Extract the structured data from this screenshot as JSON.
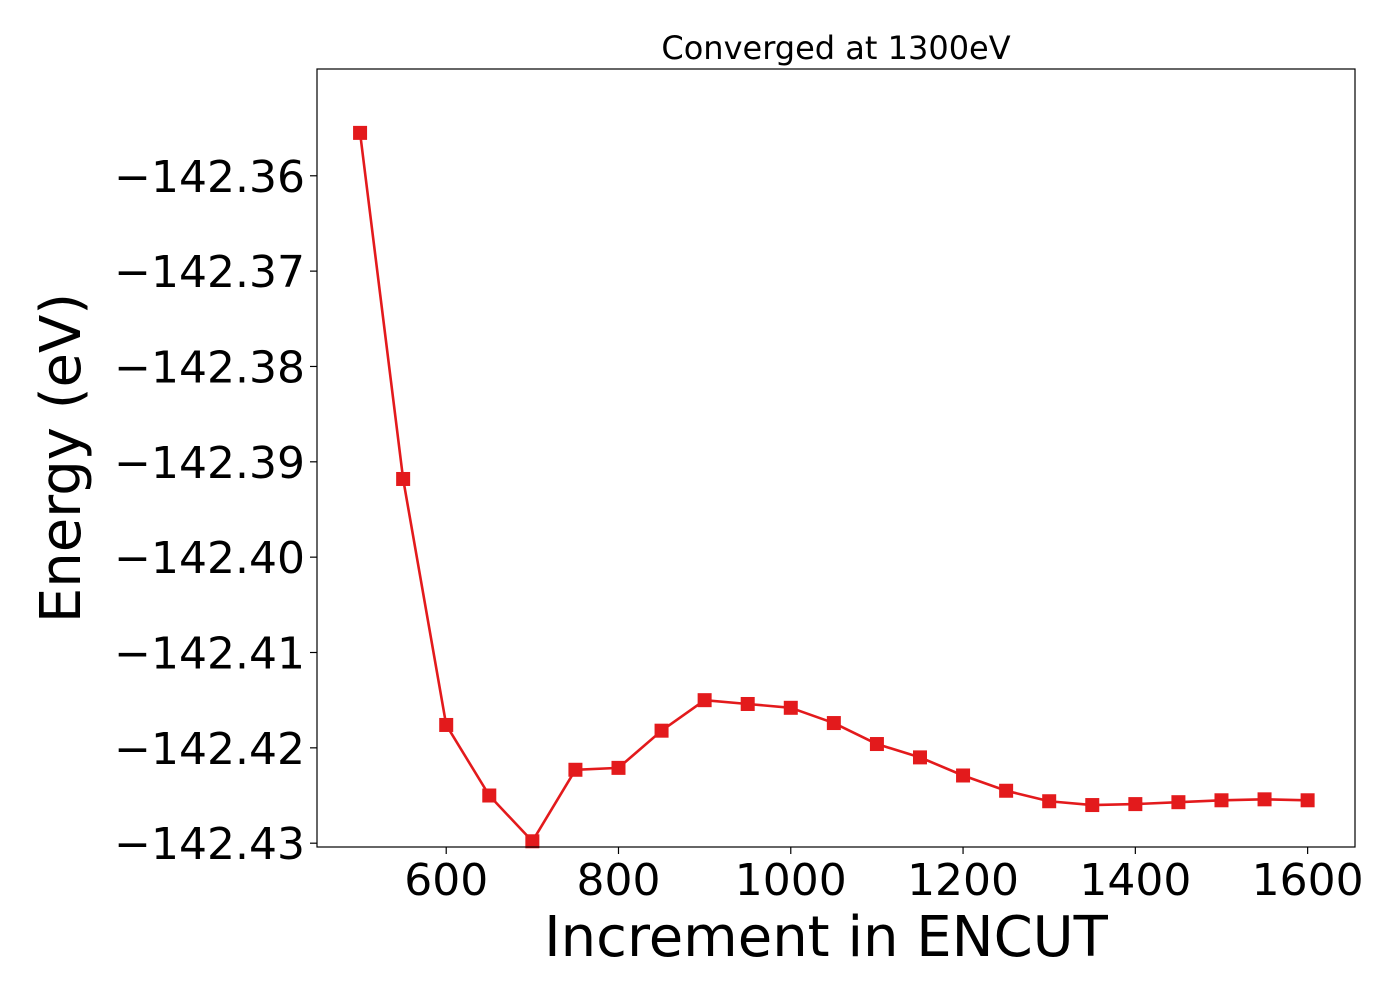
{
  "chart_data": {
    "type": "line",
    "title": "Converged at 1300eV",
    "xlabel": "Increment in ENCUT",
    "ylabel": "Energy (eV)",
    "xlim": [
      450,
      1655
    ],
    "ylim": [
      -142.4304,
      -142.3488
    ],
    "x_ticks": [
      600,
      800,
      1000,
      1200,
      1400,
      1600
    ],
    "x_tick_labels": [
      "600",
      "800",
      "1000",
      "1200",
      "1400",
      "1600"
    ],
    "y_ticks": [
      -142.36,
      -142.37,
      -142.38,
      -142.39,
      -142.4,
      -142.41,
      -142.42,
      -142.43
    ],
    "y_tick_labels": [
      "−142.36",
      "−142.37",
      "−142.38",
      "−142.39",
      "−142.40",
      "−142.41",
      "−142.42",
      "−142.43"
    ],
    "grid": false,
    "series": [
      {
        "color": "#e31a1c",
        "marker": "square",
        "x": [
          500,
          550,
          600,
          650,
          700,
          750,
          800,
          850,
          900,
          950,
          1000,
          1050,
          1100,
          1150,
          1200,
          1250,
          1300,
          1350,
          1400,
          1450,
          1500,
          1550,
          1600
        ],
        "y": [
          -142.3555,
          -142.3918,
          -142.4176,
          -142.425,
          -142.4298,
          -142.4223,
          -142.4221,
          -142.4182,
          -142.415,
          -142.4154,
          -142.4158,
          -142.4174,
          -142.4196,
          -142.421,
          -142.4229,
          -142.4245,
          -142.4256,
          -142.426,
          -142.4259,
          -142.4257,
          -142.4255,
          -142.4254,
          -142.4255
        ]
      }
    ]
  }
}
